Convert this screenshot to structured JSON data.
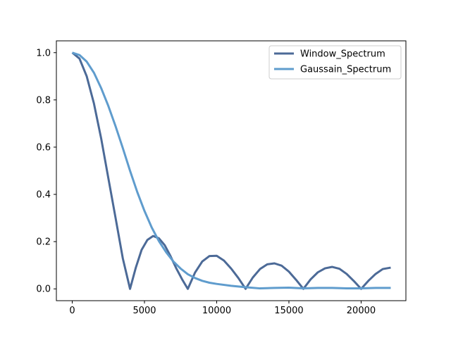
{
  "chart_data": {
    "type": "line",
    "title": "",
    "xlabel": "",
    "ylabel": "",
    "xlim": [
      -1100,
      23100
    ],
    "ylim": [
      -0.05,
      1.05
    ],
    "xticks": [
      0,
      5000,
      10000,
      15000,
      20000
    ],
    "yticks": [
      0.0,
      0.2,
      0.4,
      0.6,
      0.8,
      1.0
    ],
    "xtick_labels": [
      "0",
      "5000",
      "10000",
      "15000",
      "20000"
    ],
    "ytick_labels": [
      "0.0",
      "0.2",
      "0.4",
      "0.6",
      "0.8",
      "1.0"
    ],
    "legend_position": "upper right",
    "grid": false,
    "series": [
      {
        "name": "Window_Spectrum",
        "color": "#4c6a97",
        "x": [
          0,
          500,
          1000,
          1500,
          2000,
          2500,
          3000,
          3500,
          4000,
          4400,
          4800,
          5200,
          5600,
          6000,
          6400,
          6800,
          7200,
          7600,
          8000,
          8500,
          9000,
          9500,
          10000,
          10500,
          11000,
          11500,
          12000,
          12500,
          13000,
          13500,
          14000,
          14500,
          15000,
          15500,
          16000,
          16500,
          17000,
          17500,
          18000,
          18500,
          19000,
          19500,
          20000,
          20500,
          21000,
          21500,
          22050
        ],
        "y": [
          1.0,
          0.975,
          0.9,
          0.785,
          0.637,
          0.468,
          0.3,
          0.129,
          0.0,
          0.09,
          0.165,
          0.207,
          0.224,
          0.214,
          0.185,
          0.139,
          0.087,
          0.041,
          0.0,
          0.069,
          0.116,
          0.139,
          0.14,
          0.12,
          0.086,
          0.046,
          0.0,
          0.048,
          0.084,
          0.104,
          0.108,
          0.098,
          0.073,
          0.038,
          0.0,
          0.04,
          0.07,
          0.087,
          0.093,
          0.085,
          0.063,
          0.033,
          0.0,
          0.034,
          0.063,
          0.084,
          0.09
        ]
      },
      {
        "name": "Gaussain_Spectrum",
        "color": "#5f9ccd",
        "x": [
          0,
          500,
          1000,
          1500,
          2000,
          2500,
          3000,
          3500,
          4000,
          4500,
          5000,
          5500,
          6000,
          6500,
          7000,
          7500,
          8000,
          8500,
          9000,
          9500,
          10000,
          11000,
          12000,
          13000,
          14000,
          15000,
          16000,
          17000,
          18000,
          19000,
          20000,
          21000,
          22050
        ],
        "y": [
          1.0,
          0.99,
          0.962,
          0.915,
          0.85,
          0.774,
          0.688,
          0.596,
          0.5,
          0.41,
          0.33,
          0.26,
          0.202,
          0.155,
          0.116,
          0.086,
          0.062,
          0.046,
          0.034,
          0.026,
          0.021,
          0.013,
          0.007,
          0.002,
          0.004,
          0.005,
          0.002,
          0.004,
          0.004,
          0.002,
          0.002,
          0.004,
          0.004
        ]
      }
    ]
  }
}
